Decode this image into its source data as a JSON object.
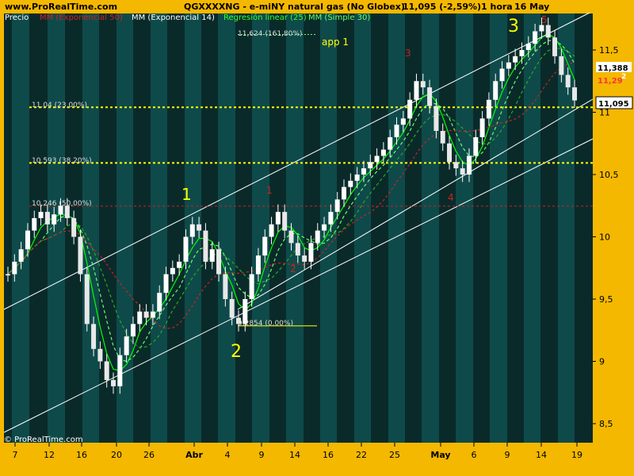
{
  "header": {
    "site": "www.ProRealTime.com",
    "instrument": "QGXXXXNG - e-miNY natural gas (No Globex)",
    "last": "11,095 (-2,59%)",
    "timeframe": "1 hora",
    "date": "16 May"
  },
  "legend": {
    "price": "Precio",
    "ema50": "MM (Exponencial 50)",
    "ema14": "MM (Exponencial 14)",
    "linreg": "Regresión linear (25)",
    "sma30": "MM (Simple 30)"
  },
  "colors": {
    "background": "#f5b800",
    "panel_dark": "#0a2a2a",
    "panel_light": "#0f4a4a",
    "ema50": "#cc2222",
    "ema14": "#22aa22",
    "linreg": "#00ff00",
    "sma30": "#66ff66",
    "fib": "#ffff00",
    "fib50": "#cc2222"
  },
  "fib_labels": {
    "f161": "11,624 (161,80%)",
    "f23": "11,04 (23,00%)",
    "f38": "10,593 (38,20%)",
    "f50": "10,246 (50,00%)",
    "f0": "9,2854 (0,00%)"
  },
  "annotations": {
    "app": "app 1",
    "w1": "1",
    "w2": "2",
    "w3": "3",
    "r1": "1",
    "r2": "2",
    "r3": "3",
    "r4": "4",
    "r5": "5"
  },
  "price_boxes": {
    "last": "11,095",
    "p1": "11,388",
    "p2": "11,29",
    "p1_suffix": "2"
  },
  "footer": {
    "copyright": "© ProRealTime.com"
  },
  "chart_data": {
    "type": "candlestick",
    "x_ticks": [
      "7",
      "12",
      "16",
      "20",
      "26",
      "Abr",
      "4",
      "9",
      "14",
      "16",
      "22",
      "25",
      "May",
      "6",
      "9",
      "14",
      "19"
    ],
    "y_ticks": [
      "8,5",
      "9",
      "9,5",
      "10",
      "10,5",
      "11",
      "11,5"
    ],
    "ylim": [
      8.35,
      11.78
    ],
    "fib_levels": [
      11.624,
      11.04,
      10.593,
      10.246,
      9.2854
    ],
    "closes": [
      9.7,
      9.8,
      9.9,
      10.05,
      10.15,
      10.2,
      10.1,
      10.18,
      10.25,
      10.15,
      10.0,
      9.7,
      9.3,
      9.1,
      9.0,
      8.85,
      8.8,
      9.05,
      9.2,
      9.3,
      9.4,
      9.35,
      9.4,
      9.55,
      9.7,
      9.75,
      9.8,
      10.0,
      10.1,
      10.05,
      9.8,
      9.9,
      9.7,
      9.5,
      9.35,
      9.3,
      9.5,
      9.7,
      9.85,
      10.0,
      10.1,
      10.2,
      10.05,
      9.95,
      9.85,
      9.8,
      9.95,
      10.05,
      10.1,
      10.2,
      10.3,
      10.4,
      10.45,
      10.5,
      10.55,
      10.6,
      10.65,
      10.7,
      10.8,
      10.9,
      10.95,
      11.1,
      11.25,
      11.2,
      11.05,
      10.85,
      10.75,
      10.6,
      10.55,
      10.5,
      10.65,
      10.8,
      10.95,
      11.1,
      11.25,
      11.35,
      11.4,
      11.45,
      11.5,
      11.55,
      11.65,
      11.7,
      11.6,
      11.45,
      11.3,
      11.2,
      11.095
    ]
  }
}
